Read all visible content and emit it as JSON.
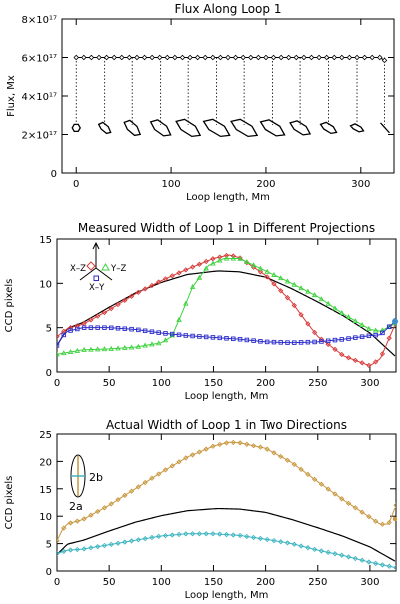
{
  "chart_data": [
    {
      "type": "scatter",
      "title": "Flux Along Loop 1",
      "xlabel": "Loop length, Mm",
      "ylabel": "Flux, Mx",
      "xlim": [
        -15,
        335
      ],
      "ylim": [
        0,
        8e+17
      ],
      "xticks": [
        0,
        100,
        200,
        300
      ],
      "xtick_labels": [
        "0",
        "100",
        "200",
        "300"
      ],
      "yticks": [
        0,
        2e+17,
        4e+17,
        6e+17,
        8e+17
      ],
      "ytick_labels": [
        "0",
        "2×10¹⁷",
        "4×10¹⁷",
        "6×10¹⁷",
        "8×10¹⁷"
      ],
      "grid": false,
      "series": [
        {
          "x": [
            0,
            8,
            16,
            24,
            32,
            40,
            48,
            56,
            64,
            72,
            80,
            88,
            96,
            104,
            112,
            120,
            128,
            136,
            144,
            152,
            160,
            168,
            176,
            184,
            192,
            200,
            208,
            216,
            224,
            232,
            240,
            248,
            256,
            264,
            272,
            280,
            288,
            296,
            304,
            312,
            320,
            325
          ],
          "y": [
            6e+17,
            6e+17,
            6e+17,
            6e+17,
            6e+17,
            6e+17,
            6e+17,
            6e+17,
            6e+17,
            6e+17,
            6e+17,
            6e+17,
            6e+17,
            6e+17,
            6e+17,
            6e+17,
            6e+17,
            6e+17,
            6e+17,
            6e+17,
            6e+17,
            6e+17,
            6e+17,
            6e+17,
            6e+17,
            6e+17,
            6e+17,
            6e+17,
            6e+17,
            6e+17,
            6e+17,
            6e+17,
            6e+17,
            6e+17,
            6e+17,
            6e+17,
            6e+17,
            6e+17,
            6e+17,
            6e+17,
            6e+17,
            5.85e+17
          ]
        }
      ],
      "cross_sections": {
        "x": [
          0,
          30,
          59,
          89,
          118,
          148,
          177,
          207,
          236,
          266,
          296,
          325
        ],
        "guide_top_y": 6e+17,
        "guide_bottom_y": 2.5e+17,
        "shape_widths": [
          9,
          12,
          16,
          20,
          24,
          26,
          26,
          24,
          20,
          16,
          13,
          10
        ],
        "shape_heights": [
          7,
          11,
          15,
          16,
          17,
          17,
          17,
          16,
          14,
          11,
          8,
          10
        ]
      }
    },
    {
      "type": "line",
      "title": "Measured Width of Loop 1 in Different Projections",
      "xlabel": "Loop length, Mm",
      "ylabel": "CCD pixels",
      "xlim": [
        0,
        325
      ],
      "ylim": [
        0,
        15
      ],
      "xticks": [
        0,
        50,
        100,
        150,
        200,
        250,
        300
      ],
      "yticks": [
        0,
        5,
        10,
        15
      ],
      "grid": false,
      "legend_labels": {
        "xz": "X–Z",
        "yz": "Y–Z",
        "xy": "X–Y"
      },
      "series": [
        {
          "style": "model",
          "color": "#000000",
          "x": [
            0,
            10,
            25,
            50,
            75,
            100,
            125,
            150,
            155,
            175,
            200,
            225,
            250,
            275,
            300,
            325
          ],
          "y": [
            3,
            4.9,
            5.6,
            7.3,
            8.9,
            10.1,
            11.0,
            11.35,
            11.4,
            11.3,
            10.7,
            9.4,
            7.9,
            6.3,
            4.4,
            1.7
          ]
        },
        {
          "style": "xz",
          "color": "#d83a3a",
          "x": [
            0,
            10,
            25,
            50,
            75,
            100,
            125,
            150,
            165,
            175,
            200,
            225,
            240,
            250,
            275,
            300,
            310,
            325
          ],
          "y": [
            4,
            4.9,
            5.4,
            7.0,
            8.8,
            10.3,
            11.6,
            12.8,
            13.2,
            12.9,
            10.9,
            7.9,
            5.5,
            4.0,
            1.8,
            0.7,
            1.5,
            5.6
          ]
        },
        {
          "style": "yz",
          "color": "#3fd23f",
          "x": [
            0,
            10,
            25,
            50,
            75,
            100,
            110,
            120,
            130,
            145,
            160,
            175,
            200,
            225,
            250,
            275,
            300,
            310,
            325
          ],
          "y": [
            2,
            2.2,
            2.5,
            2.6,
            2.8,
            3.3,
            4.0,
            6.7,
            9.6,
            12.0,
            12.8,
            12.8,
            11.4,
            10.0,
            8.5,
            6.5,
            4.8,
            4.6,
            5.5
          ]
        },
        {
          "style": "xy",
          "color": "#2b2bcc",
          "x": [
            0,
            5,
            10,
            25,
            50,
            75,
            100,
            125,
            150,
            175,
            200,
            225,
            250,
            275,
            300,
            310,
            325
          ],
          "y": [
            3,
            4.0,
            4.6,
            5.0,
            5.0,
            4.8,
            4.4,
            4.1,
            3.9,
            3.7,
            3.4,
            3.3,
            3.4,
            3.7,
            4.1,
            4.2,
            5.8
          ]
        }
      ]
    },
    {
      "type": "line",
      "title": "Actual Width of Loop 1 in Two Directions",
      "xlabel": "Loop length, Mm",
      "ylabel": "CCD pixels",
      "xlim": [
        0,
        325
      ],
      "ylim": [
        0,
        25
      ],
      "xticks": [
        0,
        50,
        100,
        150,
        200,
        250,
        300
      ],
      "yticks": [
        0,
        5,
        10,
        15,
        20,
        25
      ],
      "grid": false,
      "legend_labels": {
        "b": "2b",
        "a": "2a"
      },
      "series": [
        {
          "style": "model",
          "color": "#000000",
          "x": [
            0,
            10,
            25,
            50,
            75,
            100,
            125,
            150,
            155,
            175,
            200,
            225,
            250,
            275,
            300,
            325
          ],
          "y": [
            3,
            4.9,
            5.6,
            7.3,
            8.9,
            10.1,
            11.0,
            11.35,
            11.4,
            11.3,
            10.7,
            9.4,
            7.9,
            6.3,
            4.4,
            1.7
          ]
        },
        {
          "style": "a",
          "color": "#c8963c",
          "x": [
            0,
            5,
            10,
            25,
            50,
            75,
            100,
            125,
            150,
            165,
            175,
            200,
            225,
            250,
            275,
            300,
            310,
            318,
            325
          ],
          "y": [
            5.5,
            7.5,
            8.6,
            9.4,
            12.0,
            15.0,
            18.0,
            20.8,
            22.8,
            23.5,
            23.4,
            22.4,
            19.8,
            16.3,
            12.9,
            9.8,
            8.5,
            8.6,
            12.0
          ]
        },
        {
          "style": "b",
          "color": "#3cb4c0",
          "x": [
            0,
            10,
            25,
            50,
            75,
            100,
            125,
            150,
            175,
            200,
            225,
            250,
            275,
            300,
            325
          ],
          "y": [
            3.2,
            3.8,
            4.0,
            4.8,
            5.6,
            6.4,
            6.8,
            6.8,
            6.5,
            5.8,
            5.0,
            3.8,
            2.8,
            1.6,
            0.6
          ]
        }
      ]
    }
  ]
}
